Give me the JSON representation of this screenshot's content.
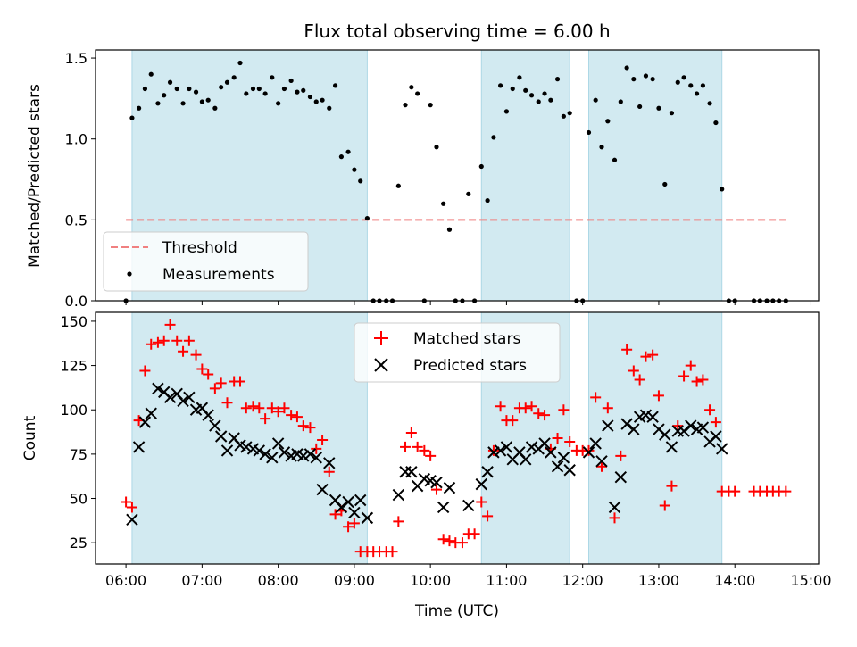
{
  "figure": {
    "title": "Flux total observing time = 6.00 h",
    "xlabel": "Time (UTC)",
    "xlim": [
      5.6,
      15.1
    ],
    "xticks": [
      6,
      7,
      8,
      9,
      10,
      11,
      12,
      13,
      14,
      15
    ],
    "xtick_labels": [
      "06:00",
      "07:00",
      "08:00",
      "09:00",
      "10:00",
      "11:00",
      "12:00",
      "13:00",
      "14:00",
      "15:00"
    ]
  },
  "colors": {
    "band": "#add8e6",
    "threshold": "#f08080",
    "measurement": "#000000",
    "matched": "#ff0000",
    "predicted": "#000000"
  },
  "chart_data": [
    {
      "type": "scatter",
      "ylabel": "Matched/Predicted stars",
      "ylim": [
        0,
        1.55
      ],
      "yticks": [
        0.0,
        0.5,
        1.0,
        1.5
      ],
      "ytick_labels": [
        "0.0",
        "0.5",
        "1.0",
        "1.5"
      ],
      "bands": [
        [
          6.08,
          9.17
        ],
        [
          10.67,
          11.83
        ],
        [
          12.08,
          13.83
        ]
      ],
      "threshold": {
        "name": "Threshold",
        "value": 0.5,
        "x_range": [
          6.0,
          14.67
        ]
      },
      "legend": {
        "position": "lower-left",
        "entries": [
          "Threshold",
          "Measurements"
        ]
      },
      "series": [
        {
          "name": "Measurements",
          "x": [
            6.0,
            6.08,
            6.17,
            6.25,
            6.33,
            6.42,
            6.5,
            6.58,
            6.67,
            6.75,
            6.83,
            6.92,
            7.0,
            7.08,
            7.17,
            7.25,
            7.33,
            7.42,
            7.5,
            7.58,
            7.67,
            7.75,
            7.83,
            7.92,
            8.0,
            8.08,
            8.17,
            8.25,
            8.33,
            8.42,
            8.5,
            8.58,
            8.67,
            8.75,
            8.83,
            8.92,
            9.0,
            9.08,
            9.17,
            9.25,
            9.33,
            9.42,
            9.5,
            9.58,
            9.67,
            9.75,
            9.83,
            9.92,
            10.0,
            10.08,
            10.17,
            10.25,
            10.33,
            10.42,
            10.5,
            10.58,
            10.67,
            10.75,
            10.83,
            10.92,
            11.0,
            11.08,
            11.17,
            11.25,
            11.33,
            11.42,
            11.5,
            11.58,
            11.67,
            11.75,
            11.83,
            11.92,
            12.0,
            12.08,
            12.17,
            12.25,
            12.33,
            12.42,
            12.5,
            12.58,
            12.67,
            12.75,
            12.83,
            12.92,
            13.0,
            13.08,
            13.17,
            13.25,
            13.33,
            13.42,
            13.5,
            13.58,
            13.67,
            13.75,
            13.83,
            13.92,
            14.0,
            14.25,
            14.33,
            14.42,
            14.5,
            14.58,
            14.67
          ],
          "y": [
            0.0,
            1.13,
            1.19,
            1.31,
            1.4,
            1.22,
            1.27,
            1.35,
            1.31,
            1.22,
            1.31,
            1.29,
            1.23,
            1.24,
            1.19,
            1.32,
            1.35,
            1.38,
            1.47,
            1.28,
            1.31,
            1.31,
            1.28,
            1.38,
            1.22,
            1.31,
            1.36,
            1.29,
            1.3,
            1.26,
            1.23,
            1.24,
            1.19,
            1.33,
            0.89,
            0.92,
            0.81,
            0.74,
            0.51,
            0.0,
            0.0,
            0.0,
            0.0,
            0.71,
            1.21,
            1.32,
            1.28,
            0.0,
            1.21,
            0.95,
            0.6,
            0.44,
            0.0,
            0.0,
            0.66,
            0.0,
            0.83,
            0.62,
            1.01,
            1.33,
            1.17,
            1.31,
            1.38,
            1.3,
            1.27,
            1.23,
            1.28,
            1.24,
            1.37,
            1.14,
            1.16,
            0.0,
            0.0,
            1.04,
            1.24,
            0.95,
            1.11,
            0.87,
            1.23,
            1.44,
            1.37,
            1.2,
            1.39,
            1.37,
            1.19,
            0.72,
            1.16,
            1.35,
            1.38,
            1.33,
            1.28,
            1.33,
            1.22,
            1.1,
            0.69,
            0.0,
            0.0,
            0.0,
            0.0,
            0.0,
            0.0,
            0.0,
            0.0
          ]
        }
      ]
    },
    {
      "type": "scatter",
      "ylabel": "Count",
      "ylim": [
        13,
        155
      ],
      "yticks": [
        25,
        50,
        75,
        100,
        125,
        150
      ],
      "ytick_labels": [
        "25",
        "50",
        "75",
        "100",
        "125",
        "150"
      ],
      "bands": [
        [
          6.08,
          9.17
        ],
        [
          10.67,
          11.83
        ],
        [
          12.08,
          13.83
        ]
      ],
      "legend": {
        "position": "upper-center",
        "entries": [
          "Matched stars",
          "Predicted stars"
        ]
      },
      "series": [
        {
          "name": "Matched stars",
          "marker": "plus",
          "x": [
            6.0,
            6.08,
            6.17,
            6.25,
            6.33,
            6.42,
            6.5,
            6.58,
            6.67,
            6.75,
            6.83,
            6.92,
            7.0,
            7.08,
            7.17,
            7.25,
            7.33,
            7.42,
            7.5,
            7.58,
            7.67,
            7.75,
            7.83,
            7.92,
            8.0,
            8.08,
            8.17,
            8.25,
            8.33,
            8.42,
            8.5,
            8.58,
            8.67,
            8.75,
            8.83,
            8.92,
            9.0,
            9.08,
            9.17,
            9.25,
            9.33,
            9.42,
            9.5,
            9.58,
            9.67,
            9.75,
            9.83,
            9.92,
            10.0,
            10.08,
            10.17,
            10.25,
            10.33,
            10.42,
            10.5,
            10.58,
            10.67,
            10.75,
            10.83,
            10.92,
            11.0,
            11.08,
            11.17,
            11.25,
            11.33,
            11.42,
            11.5,
            11.58,
            11.67,
            11.75,
            11.83,
            11.92,
            12.0,
            12.08,
            12.17,
            12.25,
            12.33,
            12.42,
            12.5,
            12.58,
            12.67,
            12.75,
            12.83,
            12.92,
            13.0,
            13.08,
            13.17,
            13.25,
            13.33,
            13.42,
            13.5,
            13.58,
            13.67,
            13.75,
            13.83,
            13.92,
            14.0,
            14.25,
            14.33,
            14.42,
            14.5,
            14.58,
            14.67
          ],
          "y": [
            48,
            45,
            94,
            122,
            137,
            138,
            139,
            148,
            139,
            133,
            139,
            131,
            123,
            120,
            112,
            115,
            104,
            116,
            116,
            101,
            102,
            101,
            95,
            101,
            99,
            101,
            97,
            96,
            91,
            90,
            78,
            83,
            65,
            41,
            43,
            34,
            36,
            20,
            20,
            20,
            20,
            20,
            20,
            37,
            79,
            87,
            79,
            77,
            74,
            55,
            27,
            26,
            25,
            25,
            30,
            30,
            48,
            40,
            77,
            102,
            94,
            94,
            101,
            101,
            102,
            98,
            97,
            78,
            84,
            100,
            82,
            77,
            77,
            77,
            107,
            68,
            101,
            39,
            74,
            134,
            122,
            117,
            130,
            131,
            108,
            46,
            57,
            91,
            119,
            125,
            116,
            117,
            100,
            93,
            54,
            54,
            54,
            54,
            54,
            54,
            54,
            54,
            54
          ]
        },
        {
          "name": "Predicted stars",
          "marker": "x",
          "x": [
            6.08,
            6.17,
            6.25,
            6.33,
            6.42,
            6.5,
            6.58,
            6.67,
            6.75,
            6.83,
            6.92,
            7.0,
            7.08,
            7.17,
            7.25,
            7.33,
            7.42,
            7.5,
            7.58,
            7.67,
            7.75,
            7.83,
            7.92,
            8.0,
            8.08,
            8.17,
            8.25,
            8.33,
            8.42,
            8.5,
            8.58,
            8.67,
            8.75,
            8.83,
            8.92,
            9.0,
            9.08,
            9.17,
            9.58,
            9.67,
            9.75,
            9.83,
            9.92,
            10.0,
            10.08,
            10.17,
            10.25,
            10.5,
            10.67,
            10.75,
            10.83,
            10.92,
            11.0,
            11.08,
            11.17,
            11.25,
            11.33,
            11.42,
            11.5,
            11.58,
            11.67,
            11.75,
            11.83,
            12.08,
            12.17,
            12.25,
            12.33,
            12.42,
            12.5,
            12.58,
            12.67,
            12.75,
            12.83,
            12.92,
            13.0,
            13.08,
            13.17,
            13.25,
            13.33,
            13.42,
            13.5,
            13.58,
            13.67,
            13.75,
            13.83
          ],
          "y": [
            38,
            79,
            93,
            98,
            112,
            110,
            107,
            109,
            105,
            107,
            100,
            101,
            97,
            91,
            85,
            77,
            84,
            80,
            79,
            78,
            77,
            75,
            73,
            81,
            76,
            74,
            75,
            74,
            75,
            73,
            55,
            70,
            49,
            45,
            48,
            42,
            49,
            39,
            52,
            65,
            65,
            57,
            61,
            60,
            59,
            45,
            56,
            46,
            58,
            65,
            76,
            77,
            79,
            72,
            76,
            72,
            79,
            78,
            81,
            76,
            68,
            73,
            66,
            76,
            81,
            71,
            91,
            45,
            62,
            92,
            89,
            96,
            97,
            96,
            89,
            86,
            79,
            88,
            88,
            91,
            89,
            90,
            82,
            85,
            78
          ]
        }
      ]
    }
  ]
}
